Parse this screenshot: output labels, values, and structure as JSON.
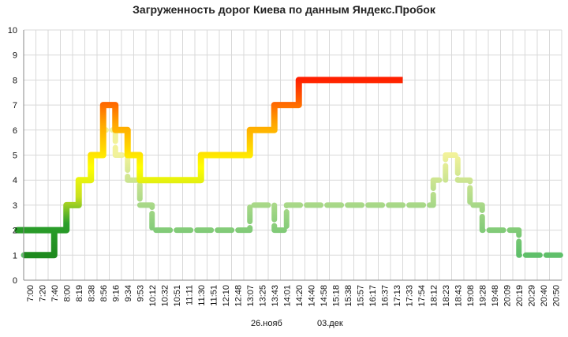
{
  "chart_data": {
    "type": "line",
    "title": "Загруженность дорог Киева по данным Яндекс.Пробок",
    "xlabel": "",
    "ylabel": "",
    "ylim": [
      0,
      10
    ],
    "yticks": [
      0,
      1,
      2,
      3,
      4,
      5,
      6,
      7,
      8,
      9,
      10
    ],
    "grid": true,
    "legend_position": "bottom",
    "x_tick_labels": [
      "7:00",
      "7:20",
      "7:40",
      "8:00",
      "8:19",
      "8:38",
      "8:56",
      "9:16",
      "9:34",
      "9:53",
      "10:12",
      "10:32",
      "10:51",
      "11:11",
      "11:30",
      "11:51",
      "12:10",
      "12:48",
      "13:07",
      "13:25",
      "13:43",
      "14:01",
      "14:20",
      "14:40",
      "14:58",
      "15:18",
      "15:38",
      "15:57",
      "16:17",
      "16:37",
      "17:13",
      "17:33",
      "17:54",
      "18:12",
      "18:23",
      "18:43",
      "19:08",
      "19:28",
      "19:48",
      "20:09",
      "20:19",
      "20:29",
      "20:40",
      "20:50"
    ],
    "series": [
      {
        "name": "26.нояб",
        "style": "dashed",
        "x": [
          "7:00",
          "7:40",
          "7:50",
          "8:00",
          "8:19",
          "8:38",
          "8:56",
          "9:16",
          "9:34",
          "9:53",
          "10:12",
          "10:32",
          "10:51",
          "11:11",
          "11:30",
          "11:51",
          "12:10",
          "12:48",
          "13:07",
          "13:25",
          "13:43",
          "14:01",
          "14:20",
          "14:40",
          "14:58",
          "15:18",
          "15:38",
          "15:57",
          "16:17",
          "16:37",
          "17:13",
          "17:33",
          "17:54",
          "18:12",
          "18:23",
          "18:43",
          "19:08",
          "19:28",
          "19:48",
          "20:09",
          "20:19",
          "20:29",
          "20:40",
          "20:50"
        ],
        "values": [
          1,
          2,
          2,
          3,
          4,
          5,
          6,
          5,
          4,
          3,
          2,
          2,
          2,
          2,
          2,
          2,
          2,
          2,
          3,
          3,
          2,
          3,
          3,
          3,
          3,
          3,
          3,
          3,
          3,
          3,
          3,
          3,
          3,
          4,
          5,
          4,
          3,
          2,
          2,
          2,
          1,
          1,
          1,
          1
        ]
      },
      {
        "name": "03.дек",
        "style": "solid",
        "x": [
          "7:00",
          "7:40",
          "7:50",
          "8:00",
          "8:19",
          "8:38",
          "8:56",
          "9:16",
          "9:34",
          "9:53",
          "10:12",
          "10:32",
          "10:51",
          "11:11",
          "11:30",
          "11:51",
          "12:10",
          "12:48",
          "13:07",
          "13:25",
          "13:43",
          "14:01",
          "14:20",
          "14:40",
          "14:58",
          "15:18",
          "15:38",
          "15:57",
          "16:17",
          "16:37",
          "17:13"
        ],
        "values": [
          1,
          2,
          2,
          3,
          4,
          5,
          7,
          6,
          5,
          4,
          4,
          4,
          4,
          4,
          5,
          5,
          5,
          5,
          6,
          6,
          7,
          7,
          8,
          8,
          8,
          8,
          8,
          8,
          8,
          8,
          8
        ]
      }
    ],
    "colors": {
      "low": "#1e8a1e",
      "mid": "#ffff00",
      "high": "#ff2a00",
      "grid": "#d9d9d9",
      "axis": "#888888"
    }
  }
}
